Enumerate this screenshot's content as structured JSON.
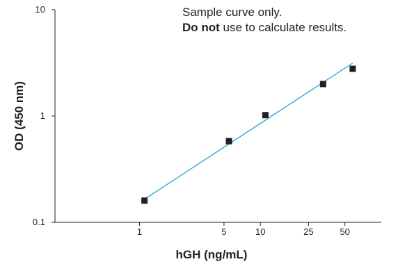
{
  "notes": {
    "line1": "Sample curve only.",
    "line2_bold": "Do not",
    "line2_rest": " use to calculate results."
  },
  "chart_data": {
    "type": "scatter",
    "title": "",
    "xlabel": "hGH (ng/mL)",
    "ylabel": "OD (450 nm)",
    "xscale": "log",
    "yscale": "log",
    "xlim": [
      0.2,
      100
    ],
    "ylim": [
      0.1,
      10
    ],
    "x_ticks": [
      1,
      5,
      10,
      25,
      50
    ],
    "y_ticks": [
      0.1,
      1,
      10
    ],
    "grid": false,
    "series": [
      {
        "type": "scatter",
        "marker": "square",
        "color": "#231f20",
        "points": [
          {
            "x": 1.1,
            "y": 0.16
          },
          {
            "x": 5.5,
            "y": 0.58
          },
          {
            "x": 11,
            "y": 1.02
          },
          {
            "x": 33,
            "y": 2.0
          },
          {
            "x": 58,
            "y": 2.78
          }
        ]
      },
      {
        "type": "line",
        "color": "#27a3d8",
        "points": [
          {
            "x": 1.1,
            "y": 0.165
          },
          {
            "x": 58,
            "y": 3.15
          }
        ]
      }
    ]
  }
}
